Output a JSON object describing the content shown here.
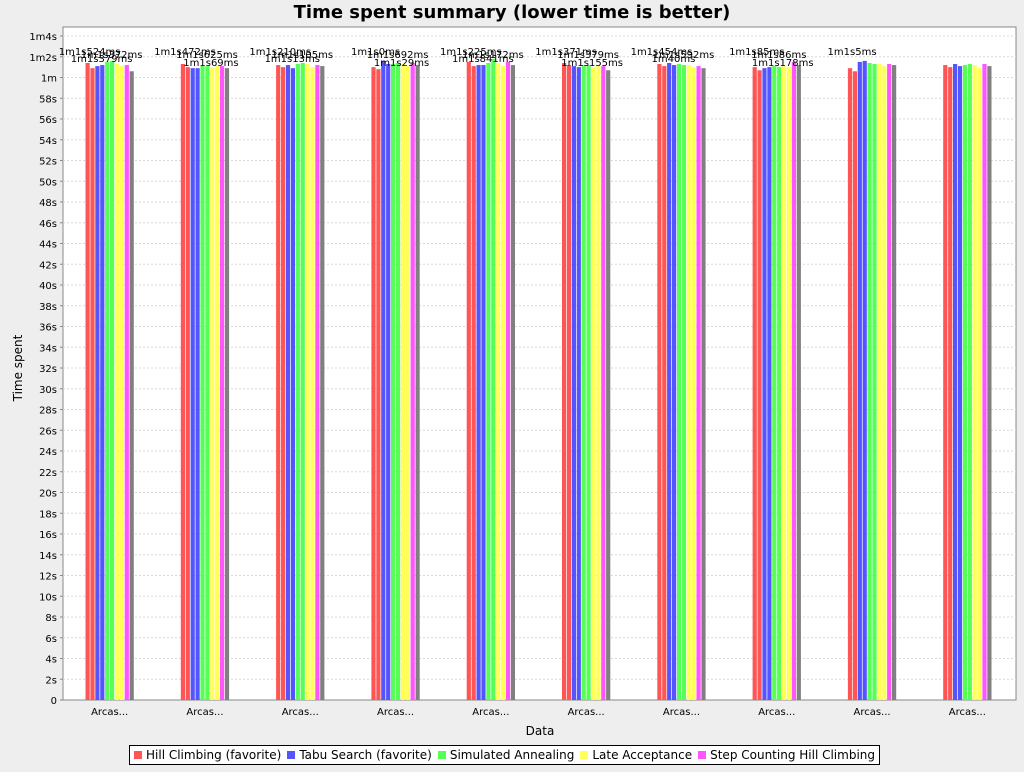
{
  "chart_data": {
    "type": "bar",
    "title": "Time spent summary (lower time is better)",
    "xlabel": "Data",
    "ylabel": "Time spent",
    "y_unit": "seconds",
    "ylim": [
      0,
      64
    ],
    "y_tick_labels": [
      "0",
      "2s",
      "4s",
      "6s",
      "8s",
      "10s",
      "12s",
      "14s",
      "16s",
      "18s",
      "20s",
      "22s",
      "24s",
      "26s",
      "28s",
      "30s",
      "32s",
      "34s",
      "36s",
      "38s",
      "40s",
      "42s",
      "44s",
      "46s",
      "48s",
      "50s",
      "52s",
      "54s",
      "56s",
      "58s",
      "1m",
      "1m2s",
      "1m4s"
    ],
    "grid": true,
    "legend_position": "bottom",
    "categories": [
      "Arcas...",
      "Arcas...",
      "Arcas...",
      "Arcas...",
      "Arcas...",
      "Arcas...",
      "Arcas...",
      "Arcas...",
      "Arcas...",
      "Arcas..."
    ],
    "series": [
      {
        "name": "Hill Climbing (favorite)",
        "color": "#ff5555",
        "values": [
          61.4,
          61.3,
          61.2,
          61.0,
          61.5,
          61.4,
          61.3,
          61.0,
          60.9,
          61.2
        ]
      },
      {
        "name": "",
        "color": "#ff5555",
        "values": [
          60.9,
          61.0,
          61.0,
          60.8,
          61.1,
          61.2,
          61.1,
          60.7,
          60.6,
          61.0
        ]
      },
      {
        "name": "Tabu Search (favorite)",
        "color": "#5555ff",
        "values": [
          61.1,
          60.9,
          61.2,
          61.6,
          61.2,
          61.1,
          61.4,
          60.9,
          61.5,
          61.3
        ]
      },
      {
        "name": "",
        "color": "#5555ff",
        "values": [
          61.2,
          60.9,
          60.9,
          61.3,
          61.2,
          61.0,
          61.2,
          61.0,
          61.6,
          61.1
        ]
      },
      {
        "name": "Simulated Annealing",
        "color": "#55ff55",
        "values": [
          61.5,
          61.1,
          61.3,
          61.3,
          61.4,
          61.2,
          61.3,
          61.1,
          61.4,
          61.2
        ]
      },
      {
        "name": "",
        "color": "#55ff55",
        "values": [
          61.6,
          61.1,
          61.4,
          61.4,
          61.8,
          61.2,
          61.2,
          61.0,
          61.3,
          61.3
        ]
      },
      {
        "name": "Late Acceptance",
        "color": "#ffff55",
        "values": [
          61.3,
          61.0,
          61.3,
          61.3,
          61.4,
          61.0,
          61.2,
          61.1,
          61.3,
          61.2
        ]
      },
      {
        "name": "",
        "color": "#ffff55",
        "values": [
          61.1,
          61.2,
          61.0,
          61.1,
          61.1,
          61.1,
          61.0,
          61.0,
          61.1,
          60.9
        ]
      },
      {
        "name": "Step Counting Hill Climbing",
        "color": "#ff55ff",
        "values": [
          61.2,
          61.1,
          61.2,
          61.4,
          61.5,
          61.1,
          61.1,
          61.5,
          61.3,
          61.3
        ]
      },
      {
        "name": "",
        "color": "#808080",
        "values": [
          60.6,
          60.9,
          61.1,
          61.2,
          61.2,
          60.7,
          60.9,
          61.2,
          61.2,
          61.1
        ]
      }
    ],
    "data_labels": [
      "1m1s524ms",
      "1m1s372ms",
      "1m1s379ms",
      "1m1s472ms",
      "1m1s625ms",
      "1m1s69ms",
      "1m1s210ms",
      "1m1s105ms",
      "1m1s13ms",
      "1m1s0ms",
      "1m1s692ms",
      "1m1s29ms",
      "1m1s225ms",
      "1m1s172ms",
      "1m1s841ms",
      "1m1s371ms",
      "1m1s379ms",
      "1m1s155ms",
      "1m1s454ms",
      "1m1s592ms",
      "1m40ms",
      "1m1s85ms",
      "1m1s86ms",
      "1m1s178ms",
      "1m1s5ms"
    ]
  }
}
